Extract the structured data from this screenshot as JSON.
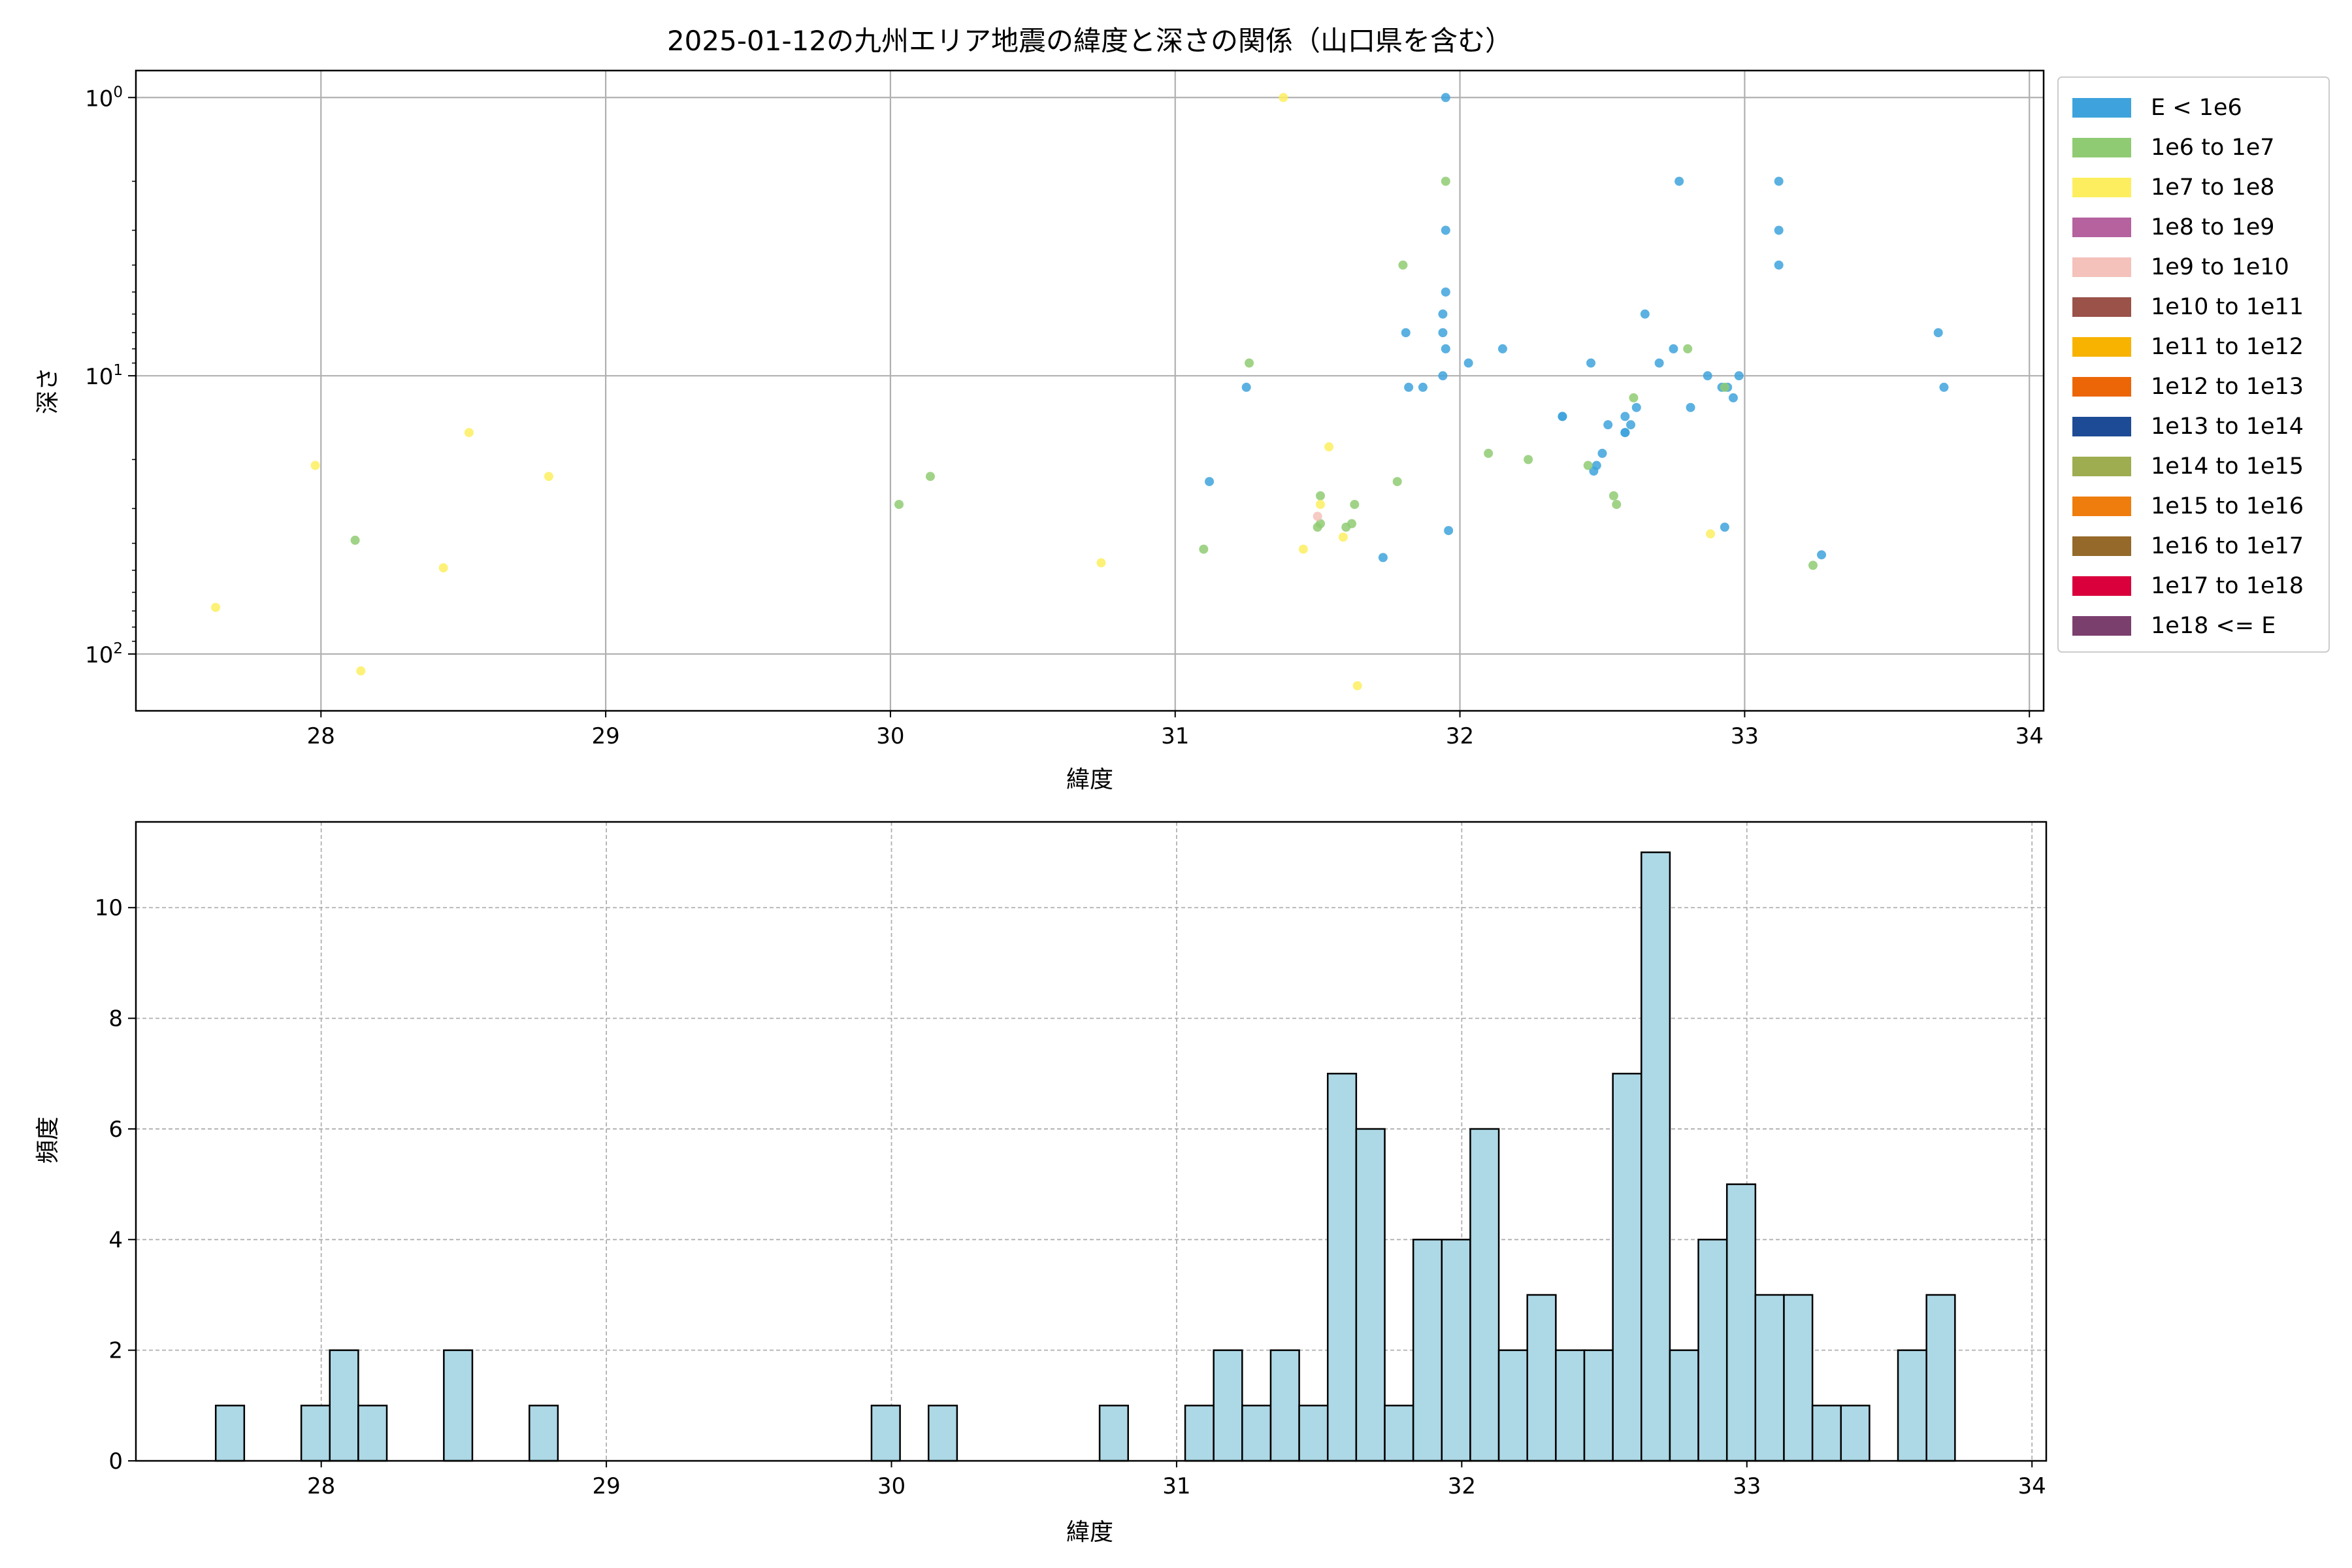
{
  "figure_title": "2025-01-12の九州エリア地震の緯度と深さの関係（山口県を含む）",
  "chart_data": [
    {
      "type": "scatter",
      "title": "2025-01-12の九州エリア地震の緯度と深さの関係（山口県を含む）",
      "xlabel": "緯度",
      "ylabel": "深さ",
      "xlim": [
        27.35,
        34.05
      ],
      "ylim": [
        160,
        0.8
      ],
      "yscale": "log",
      "y_inverted": true,
      "xticks": [
        28,
        29,
        30,
        31,
        32,
        33,
        34
      ],
      "yticks": [
        {
          "value": 1,
          "base": "10",
          "exp": "0"
        },
        {
          "value": 10,
          "base": "10",
          "exp": "1"
        },
        {
          "value": 100,
          "base": "10",
          "exp": "2"
        }
      ],
      "grid": true,
      "legend_position": "outside-right",
      "legend": [
        {
          "label": "E < 1e6",
          "color": "#3ea3dc"
        },
        {
          "label": "1e6 to 1e7",
          "color": "#8fcb72"
        },
        {
          "label": "1e7 to 1e8",
          "color": "#fdee60"
        },
        {
          "label": "1e8 to 1e9",
          "color": "#b5629f"
        },
        {
          "label": "1e9 to 1e10",
          "color": "#f4c1bb"
        },
        {
          "label": "1e10 to 1e11",
          "color": "#9b5249"
        },
        {
          "label": "1e11 to 1e12",
          "color": "#f7b300"
        },
        {
          "label": "1e12 to 1e13",
          "color": "#ec6607"
        },
        {
          "label": "1e13 to 1e14",
          "color": "#1d4b96"
        },
        {
          "label": "1e14 to 1e15",
          "color": "#9dad4f"
        },
        {
          "label": "1e15 to 1e16",
          "color": "#ef7d0e"
        },
        {
          "label": "1e16 to 1e17",
          "color": "#94692a"
        },
        {
          "label": "1e17 to 1e18",
          "color": "#d9003b"
        },
        {
          "label": "1e18 <= E",
          "color": "#7b3f6e"
        }
      ],
      "series": [
        {
          "class": 0,
          "points": [
            [
              31.95,
              1
            ],
            [
              31.95,
              3
            ],
            [
              31.95,
              5
            ],
            [
              31.94,
              6
            ],
            [
              31.94,
              7
            ],
            [
              31.95,
              8
            ],
            [
              31.94,
              10
            ],
            [
              31.81,
              7
            ],
            [
              31.82,
              11
            ],
            [
              31.87,
              11
            ],
            [
              32.03,
              9
            ],
            [
              32.15,
              8
            ],
            [
              32.46,
              9
            ],
            [
              32.7,
              9
            ],
            [
              32.75,
              8
            ],
            [
              32.65,
              6
            ],
            [
              32.77,
              2
            ],
            [
              33.12,
              2
            ],
            [
              33.12,
              3
            ],
            [
              33.12,
              4
            ],
            [
              33.68,
              7
            ],
            [
              33.7,
              11
            ],
            [
              32.87,
              10
            ],
            [
              32.92,
              11
            ],
            [
              32.94,
              11
            ],
            [
              32.96,
              12
            ],
            [
              32.98,
              10
            ],
            [
              32.81,
              13
            ],
            [
              32.36,
              14
            ],
            [
              32.36,
              14
            ],
            [
              32.52,
              15
            ],
            [
              32.58,
              14
            ],
            [
              32.58,
              16
            ],
            [
              32.6,
              15
            ],
            [
              32.62,
              13
            ],
            [
              32.58,
              16
            ],
            [
              32.5,
              19
            ],
            [
              32.48,
              21
            ],
            [
              32.47,
              22
            ],
            [
              31.25,
              11
            ],
            [
              31.12,
              24
            ],
            [
              31.96,
              36
            ],
            [
              32.93,
              35
            ],
            [
              31.73,
              45
            ],
            [
              33.27,
              44
            ]
          ]
        },
        {
          "class": 1,
          "points": [
            [
              31.95,
              2
            ],
            [
              31.8,
              4
            ],
            [
              31.26,
              9
            ],
            [
              32.8,
              8
            ],
            [
              32.93,
              11
            ],
            [
              32.61,
              12
            ],
            [
              32.1,
              19
            ],
            [
              32.24,
              20
            ],
            [
              32.45,
              21
            ],
            [
              31.78,
              24
            ],
            [
              30.14,
              23
            ],
            [
              30.03,
              29
            ],
            [
              31.51,
              27
            ],
            [
              31.63,
              29
            ],
            [
              31.62,
              34
            ],
            [
              31.5,
              35
            ],
            [
              31.6,
              35
            ],
            [
              31.51,
              34
            ],
            [
              32.54,
              27
            ],
            [
              32.55,
              29
            ],
            [
              31.1,
              42
            ],
            [
              28.12,
              39
            ],
            [
              33.24,
              48
            ]
          ]
        },
        {
          "class": 2,
          "points": [
            [
              31.38,
              1
            ],
            [
              27.98,
              21
            ],
            [
              28.52,
              16
            ],
            [
              28.8,
              23
            ],
            [
              31.54,
              18
            ],
            [
              31.51,
              29
            ],
            [
              31.45,
              42
            ],
            [
              31.59,
              38
            ],
            [
              32.88,
              37
            ],
            [
              30.74,
              47
            ],
            [
              28.43,
              49
            ],
            [
              27.63,
              68
            ],
            [
              28.14,
              115
            ],
            [
              31.64,
              130
            ]
          ]
        },
        {
          "class": 4,
          "points": [
            [
              31.5,
              32
            ]
          ]
        }
      ]
    },
    {
      "type": "bar",
      "subtype": "histogram",
      "xlabel": "緯度",
      "ylabel": "頻度",
      "xlim": [
        27.35,
        34.05
      ],
      "ylim": [
        0,
        11.55
      ],
      "xticks": [
        28,
        29,
        30,
        31,
        32,
        33,
        34
      ],
      "yticks": [
        0,
        2,
        4,
        6,
        8,
        10
      ],
      "grid": true,
      "bar_color": "#add8e6",
      "edge_color": "#000000",
      "bin_start": 27.63,
      "bin_width": 0.1,
      "counts": [
        1,
        0,
        0,
        1,
        2,
        1,
        0,
        0,
        2,
        0,
        0,
        1,
        0,
        0,
        0,
        0,
        0,
        0,
        0,
        0,
        0,
        0,
        0,
        1,
        0,
        1,
        0,
        0,
        0,
        0,
        0,
        1,
        0,
        0,
        1,
        2,
        1,
        2,
        1,
        7,
        6,
        1,
        4,
        4,
        6,
        2,
        3,
        2,
        2,
        7,
        11,
        2,
        4,
        5,
        3,
        3,
        1,
        1,
        0,
        2,
        3
      ]
    }
  ]
}
